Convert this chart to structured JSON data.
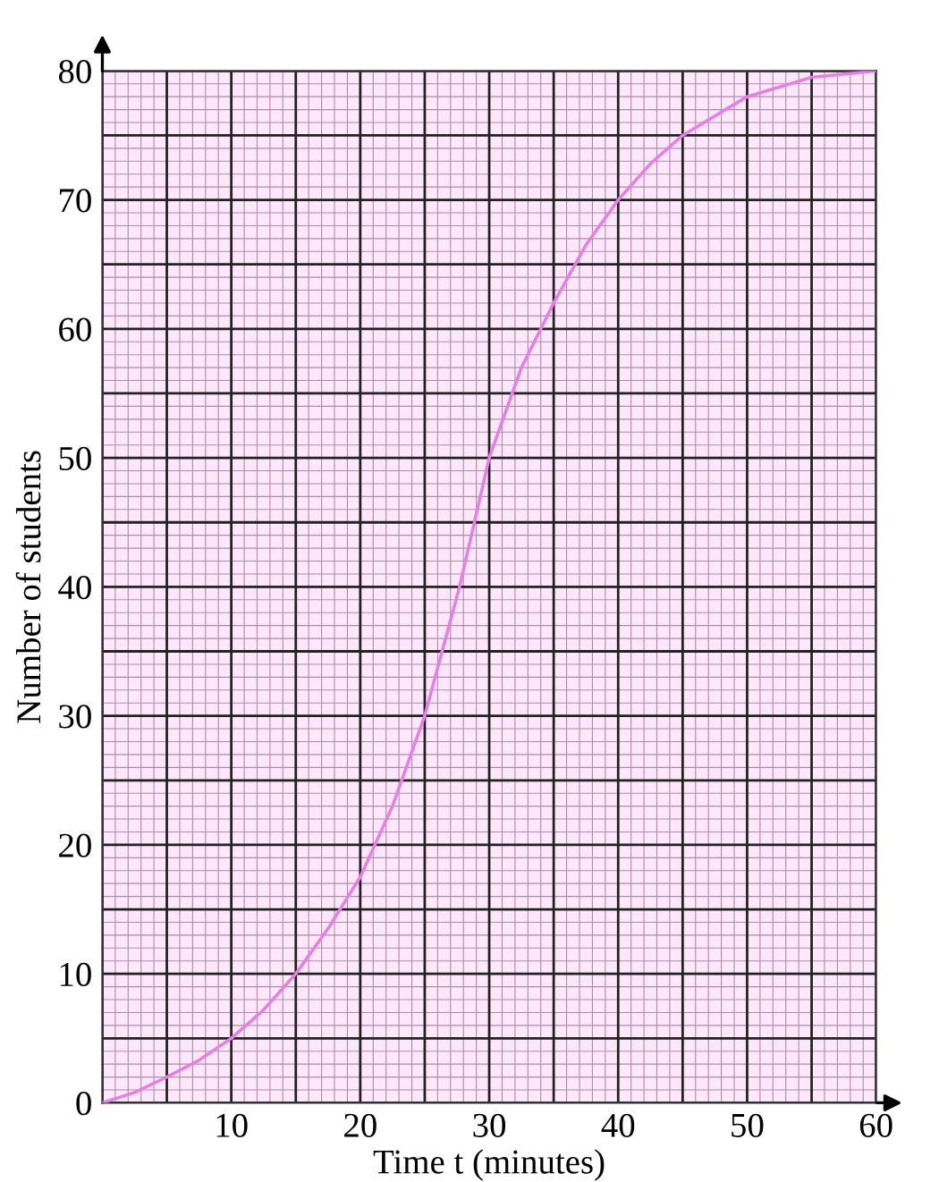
{
  "chart_data": {
    "type": "line",
    "xlabel": "Time t (minutes)",
    "ylabel": "Number of students",
    "x": [
      0,
      2.5,
      5,
      7.5,
      10,
      12.5,
      15,
      17.5,
      20,
      22.5,
      25,
      27.7,
      30,
      32.5,
      35,
      37.5,
      40,
      42.5,
      45,
      50,
      55,
      60
    ],
    "series": [
      {
        "color": "#e67fe6",
        "values": [
          0,
          0.8,
          2,
          3.3,
          5,
          7.2,
          10,
          13.5,
          17.5,
          23,
          30,
          40,
          50,
          57,
          62,
          66.5,
          70,
          72.8,
          75,
          78,
          79.5,
          80
        ]
      }
    ],
    "xlim": [
      0,
      60
    ],
    "ylim": [
      0,
      80
    ],
    "xticks": [
      {
        "value": 0,
        "label": null
      },
      {
        "value": 5,
        "label": null
      },
      10,
      {
        "value": 15,
        "label": null
      },
      20,
      {
        "value": 25,
        "label": null
      },
      30,
      {
        "value": 35,
        "label": null
      },
      40,
      {
        "value": 45,
        "label": null
      },
      50,
      {
        "value": 55,
        "label": null
      },
      60
    ],
    "yticks": [
      0,
      {
        "value": 5,
        "label": null
      },
      10,
      {
        "value": 15,
        "label": null
      },
      20,
      {
        "value": 25,
        "label": null
      },
      30,
      {
        "value": 35,
        "label": null
      },
      40,
      {
        "value": 45,
        "label": null
      },
      50,
      {
        "value": 55,
        "label": null
      },
      60,
      {
        "value": 65,
        "label": null
      },
      70,
      {
        "value": 75,
        "label": null
      },
      80
    ],
    "grid": true,
    "marker": "none",
    "line_style": "solid"
  }
}
